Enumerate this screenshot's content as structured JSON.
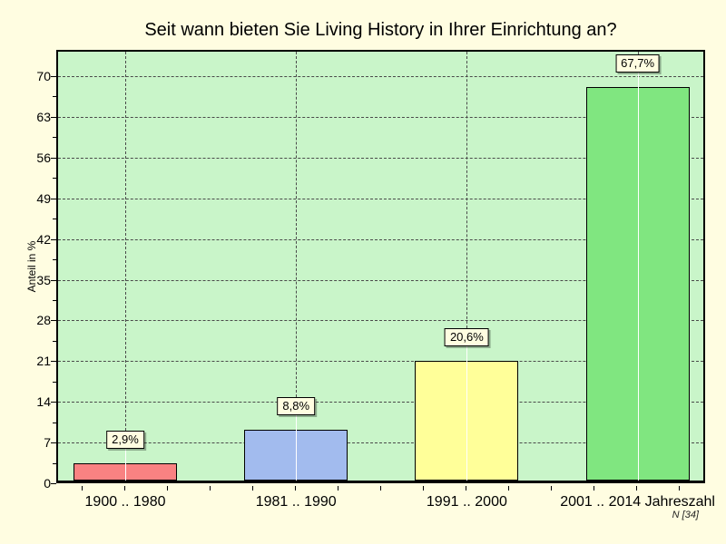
{
  "chart_data": {
    "type": "bar",
    "title": "Seit wann bieten Sie Living History in Ihrer Einrichtung an?",
    "ylabel": "Anteil in %",
    "categories": [
      "1900 .. 1980",
      "1981 .. 1990",
      "1991 .. 2000",
      "2001 .. 2014 Jahreszahl"
    ],
    "values": [
      2.9,
      8.8,
      20.6,
      67.7
    ],
    "value_labels": [
      "2,9%",
      "8,8%",
      "20,6%",
      "67,7%"
    ],
    "ylim": [
      0,
      70
    ],
    "ytick_step": 7,
    "yticks": [
      "0",
      "7",
      "14",
      "21",
      "28",
      "35",
      "42",
      "49",
      "56",
      "63",
      "70"
    ],
    "grid": true,
    "legend": false,
    "n_label": "N [34]",
    "colors": {
      "page_bg": "#fffde1",
      "plot_bg": "#c9f5c9",
      "bars": [
        "#f98282",
        "#a2bbee",
        "#ffff99",
        "#80e680"
      ],
      "grid_line": "#4a4a4a",
      "label_box_bg": "#fffde1",
      "axis": "#000000"
    }
  }
}
